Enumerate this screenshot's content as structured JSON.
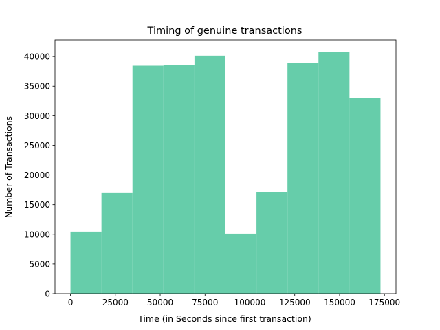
{
  "chart_data": {
    "type": "bar",
    "title": "Timing of genuine transactions",
    "xlabel": "Time (in Seconds since first transaction)",
    "ylabel": "Number of Transactions",
    "bin_edges": [
      0,
      17279.2,
      34558.4,
      51837.6,
      69116.8,
      86396,
      103675.2,
      120954.4,
      138233.6,
      155512.8,
      172792
    ],
    "values": [
      10450,
      16950,
      38450,
      38550,
      40150,
      10100,
      17150,
      38900,
      40750,
      33000
    ],
    "xlim": [
      -8640,
      181432
    ],
    "ylim": [
      0,
      42800
    ],
    "x_ticks": [
      0,
      25000,
      50000,
      75000,
      100000,
      125000,
      150000,
      175000
    ],
    "y_ticks": [
      0,
      5000,
      10000,
      15000,
      20000,
      25000,
      30000,
      35000,
      40000
    ],
    "bar_color": "#66cdaa",
    "grid": false
  }
}
